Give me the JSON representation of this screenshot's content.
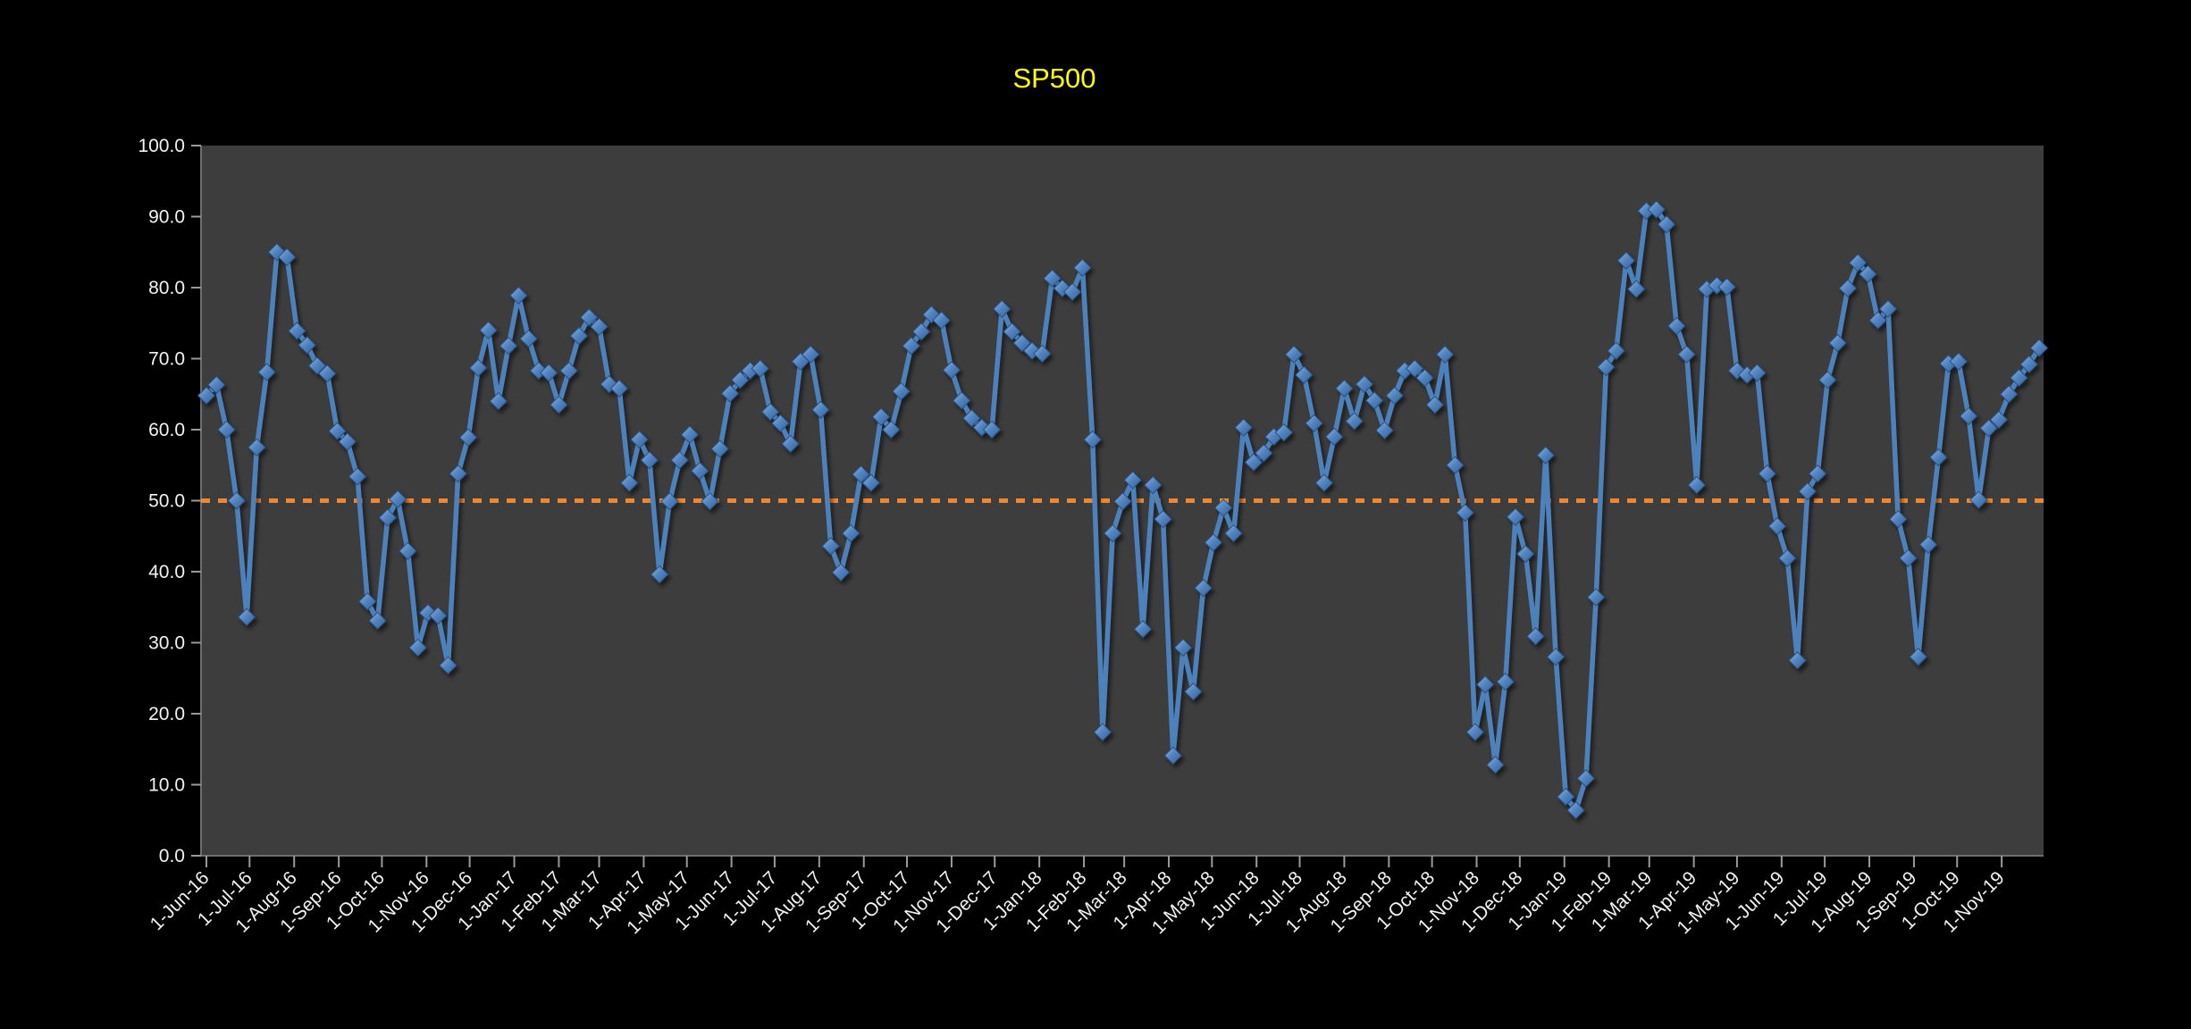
{
  "chart": {
    "title": "SP500",
    "title_color": "#FFFF00",
    "canvas_bg": "#000000",
    "plot_bg": "#3D3D3D",
    "line_color": "#4E81BC",
    "line_shadow_color": "#1E3A5F",
    "marker_fill_light": "#8FB4E3",
    "marker_fill_mid": "#5585C0",
    "marker_fill_dark": "#31619E",
    "marker_stroke": "#26507E",
    "ref_line_color": "#EE8733",
    "axis_line_color": "#6E6E6E",
    "tick_color": "#9A9A9A",
    "axis_text_color": "#F2F2F2"
  },
  "chart_data": {
    "type": "line",
    "title": "SP500",
    "series_name": "SP500",
    "x_start_date": "1-Jun-16",
    "x_interval": "weekly",
    "grid": "off",
    "legend": "none",
    "ylim": [
      0,
      100
    ],
    "reference_line_y": 50,
    "y_tick_labels": [
      "0.0",
      "10.0",
      "20.0",
      "30.0",
      "40.0",
      "50.0",
      "60.0",
      "70.0",
      "80.0",
      "90.0",
      "100.0"
    ],
    "x_tick_labels": [
      "1-Jun-16",
      "1-Jul-16",
      "1-Aug-16",
      "1-Sep-16",
      "1-Oct-16",
      "1-Nov-16",
      "1-Dec-16",
      "1-Jan-17",
      "1-Feb-17",
      "1-Mar-17",
      "1-Apr-17",
      "1-May-17",
      "1-Jun-17",
      "1-Jul-17",
      "1-Aug-17",
      "1-Sep-17",
      "1-Oct-17",
      "1-Nov-17",
      "1-Dec-17",
      "1-Jan-18",
      "1-Feb-18",
      "1-Mar-18",
      "1-Apr-18",
      "1-May-18",
      "1-Jun-18",
      "1-Jul-18",
      "1-Aug-18",
      "1-Sep-18",
      "1-Oct-18",
      "1-Nov-18",
      "1-Dec-18",
      "1-Jan-19",
      "1-Feb-19",
      "1-Mar-19",
      "1-Apr-19",
      "1-May-19",
      "1-Jun-19",
      "1-Jul-19",
      "1-Aug-19",
      "1-Sep-19",
      "1-Oct-19",
      "1-Nov-19"
    ],
    "values": [
      64.8,
      66.3,
      60.0,
      50.0,
      33.6,
      57.5,
      68.1,
      85.0,
      84.3,
      73.9,
      71.9,
      69.0,
      67.9,
      59.8,
      58.3,
      53.4,
      35.8,
      33.1,
      47.6,
      50.2,
      42.9,
      29.3,
      34.2,
      33.8,
      26.8,
      53.8,
      58.9,
      68.7,
      74.0,
      64.0,
      71.8,
      78.9,
      72.8,
      68.3,
      68.0,
      63.5,
      68.3,
      73.2,
      75.8,
      74.5,
      66.4,
      65.8,
      52.5,
      58.6,
      55.7,
      39.6,
      49.9,
      55.7,
      59.3,
      54.2,
      49.9,
      57.3,
      65.1,
      67.0,
      68.3,
      68.6,
      62.5,
      60.9,
      58.0,
      69.6,
      70.6,
      62.8,
      43.6,
      39.9,
      45.4,
      53.7,
      52.5,
      61.8,
      60.0,
      65.4,
      71.8,
      73.8,
      76.2,
      75.4,
      68.4,
      64.1,
      61.6,
      60.3,
      60.0,
      77.0,
      73.8,
      72.2,
      71.1,
      70.7,
      81.3,
      79.9,
      79.4,
      82.8,
      58.6,
      17.4,
      45.4,
      49.9,
      52.9,
      31.9,
      52.2,
      47.4,
      14.1,
      29.3,
      23.1,
      37.7,
      44.1,
      49.0,
      45.4,
      60.3,
      55.4,
      56.7,
      59.0,
      59.6,
      70.6,
      67.7,
      60.9,
      52.5,
      59.0,
      65.8,
      61.2,
      66.4,
      64.1,
      59.9,
      64.8,
      68.3,
      68.6,
      67.3,
      63.5,
      70.6,
      55.0,
      48.3,
      17.4,
      24.1,
      12.8,
      24.5,
      47.7,
      42.5,
      30.9,
      56.4,
      28.0,
      8.3,
      6.4,
      10.9,
      36.4,
      68.8,
      71.1,
      83.8,
      79.8,
      90.8,
      91.0,
      88.9,
      74.6,
      70.6,
      52.2,
      79.8,
      80.3,
      80.1,
      68.3,
      67.7,
      68.0,
      53.8,
      46.4,
      41.9,
      27.5,
      51.3,
      53.8,
      67.0,
      72.2,
      79.9,
      83.5,
      81.9,
      75.4,
      77.0,
      47.4,
      41.9,
      28.0,
      43.8,
      56.1,
      69.3,
      69.6,
      61.9,
      50.1,
      60.2,
      61.4,
      65.0,
      67.3,
      69.2,
      71.5
    ]
  }
}
